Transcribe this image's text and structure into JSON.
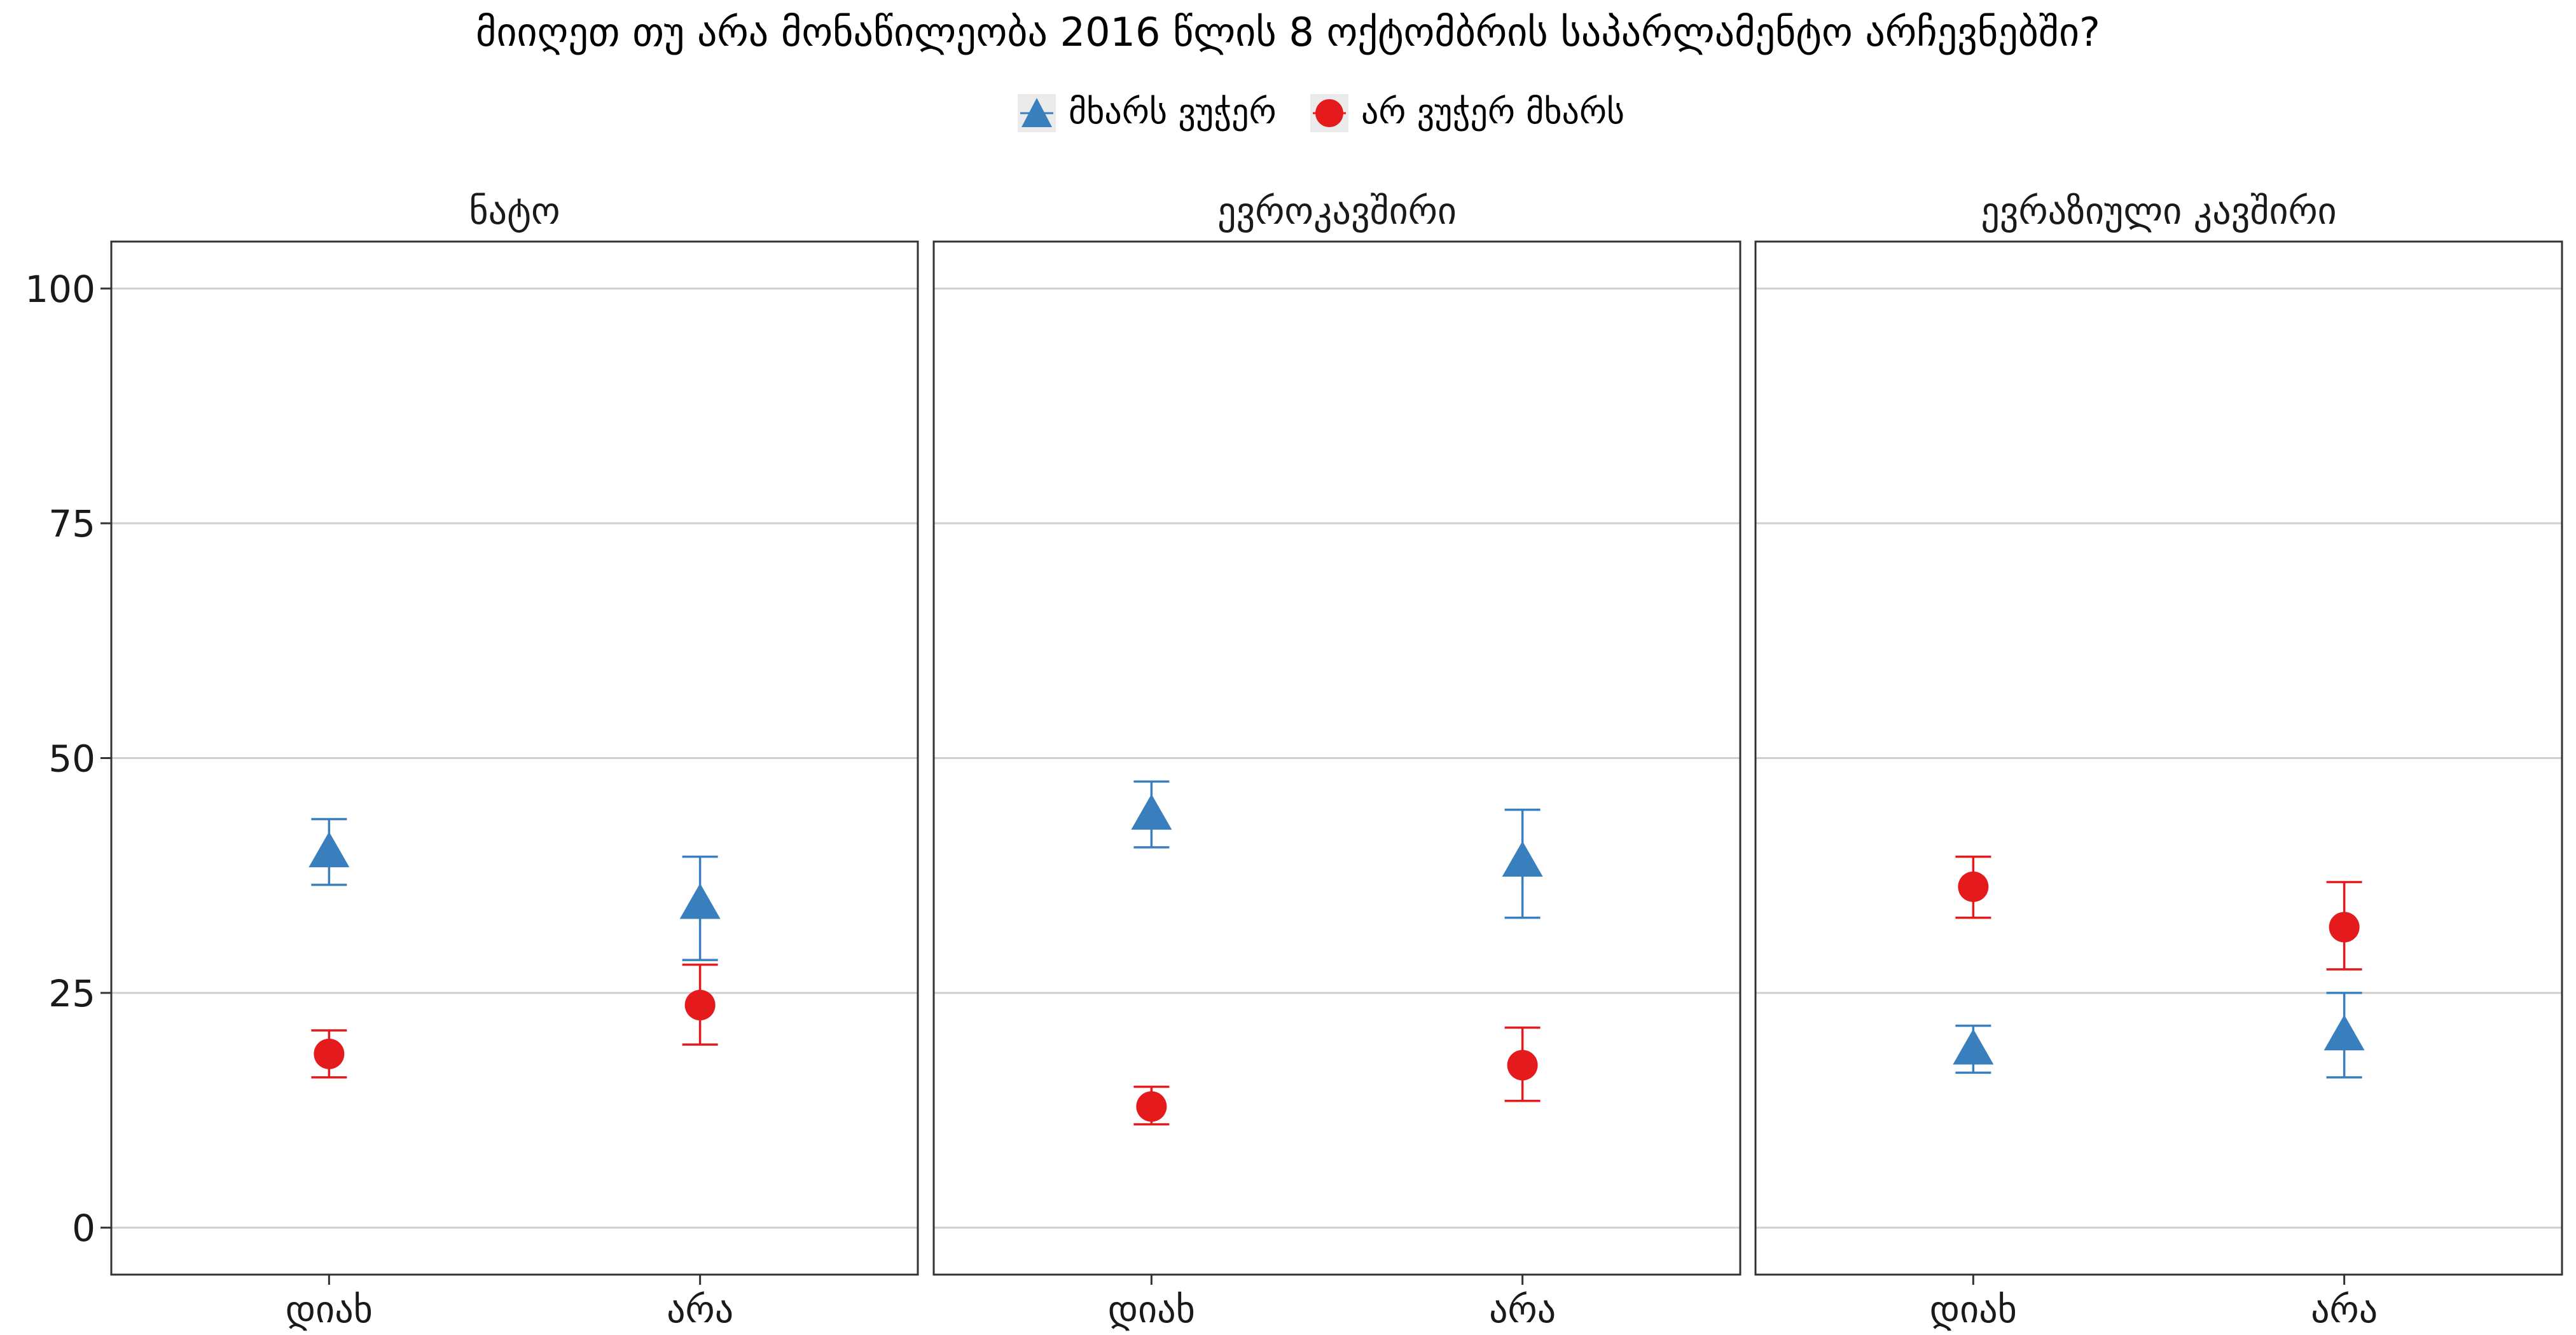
{
  "title": "მიიღეთ თუ არა მონაწილეობა 2016 წლის 8 ოქტომბრის საპარლამენტო არჩევნებში?",
  "legend": [
    {
      "label": "მხარს ვუჭერ",
      "color": "#3a7fbd",
      "icon": "triangle-icon"
    },
    {
      "label": "არ ვუჭერ მხარს",
      "color": "#e41a1c",
      "icon": "circle-icon"
    }
  ],
  "chart_data": {
    "type": "scatter",
    "subtype": "point-with-errorbars",
    "ylim": [
      -5,
      105
    ],
    "yticks": [
      0,
      25,
      50,
      75,
      100
    ],
    "grid": true,
    "legend_placement": "top-center",
    "categories": [
      "დიახ",
      "არა"
    ],
    "panels": [
      {
        "title": "ნატო",
        "series": [
          {
            "name": "მხარს ვუჭერ",
            "values": [
              40,
              34.5
            ],
            "lower": [
              36.5,
              28.5
            ],
            "upper": [
              43.5,
              39.5
            ]
          },
          {
            "name": "არ ვუჭერ მხარს",
            "values": [
              18.5,
              23.7
            ],
            "lower": [
              16,
              19.5
            ],
            "upper": [
              21,
              28
            ]
          }
        ]
      },
      {
        "title": "ევროკავშირი",
        "series": [
          {
            "name": "მხარს ვუჭერ",
            "values": [
              44,
              39
            ],
            "lower": [
              40.5,
              33
            ],
            "upper": [
              47.5,
              44.5
            ]
          },
          {
            "name": "არ ვუჭერ მხარს",
            "values": [
              12.9,
              17.3
            ],
            "lower": [
              11,
              13.5
            ],
            "upper": [
              15,
              21.3
            ]
          }
        ]
      },
      {
        "title": "ევრაზიული კავშირი",
        "series": [
          {
            "name": "მხარს ვუჭერ",
            "values": [
              19,
              20.5
            ],
            "lower": [
              16.5,
              16
            ],
            "upper": [
              21.5,
              25
            ]
          },
          {
            "name": "არ ვუჭერ მხარს",
            "values": [
              36.3,
              32
            ],
            "lower": [
              33,
              27.5
            ],
            "upper": [
              39.5,
              36.8
            ]
          }
        ]
      }
    ]
  }
}
